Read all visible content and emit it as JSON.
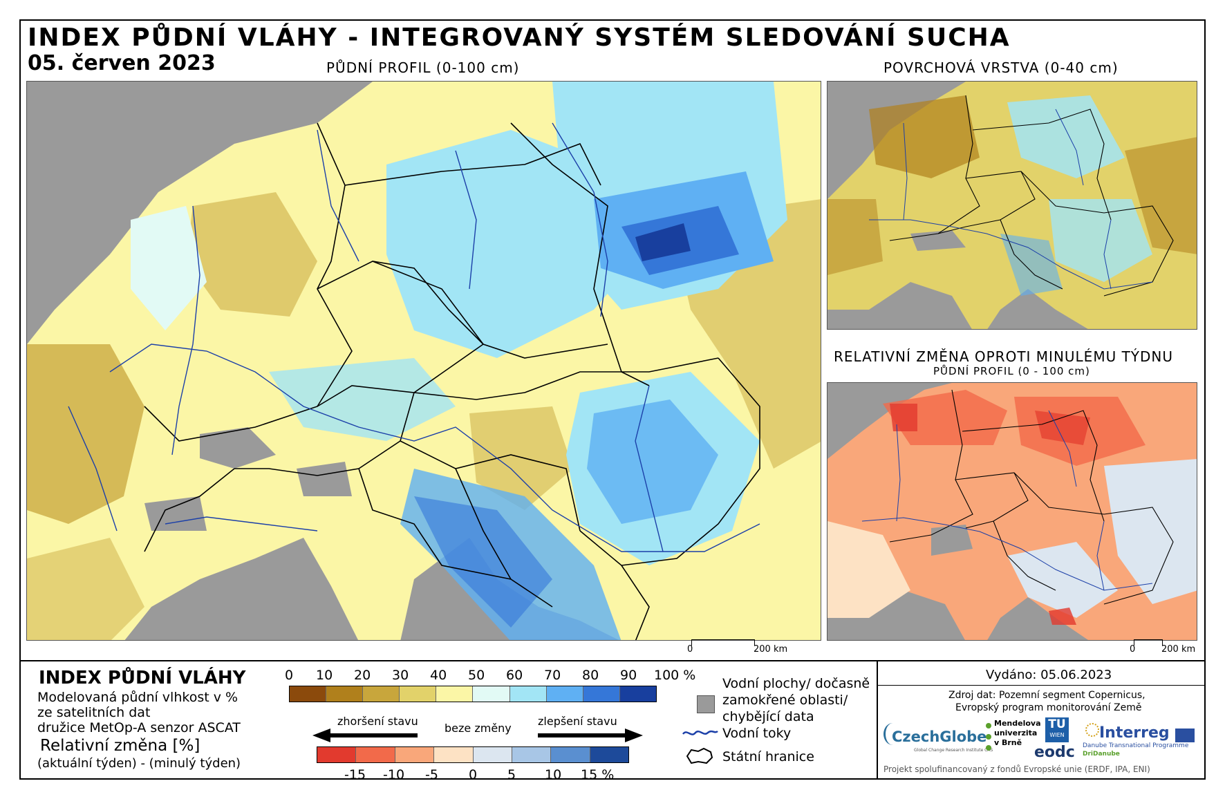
{
  "header": {
    "title": "INDEX PŮDNÍ VLÁHY - INTEGROVANÝ SYSTÉM SLEDOVÁNÍ SUCHA",
    "date": "05. červen 2023"
  },
  "maps": {
    "main_caption": "PŮDNÍ PROFIL (0-100 cm)",
    "surface_caption": "POVRCHOVÁ VRSTVA (0-40 cm)",
    "change_caption": "RELATIVNÍ ZMĚNA OPROTI MINULÉMU TÝDNU",
    "change_subcaption": "PŮDNÍ PROFIL (0 - 100 cm)",
    "scale_zero": "0",
    "scale_label": "200 km"
  },
  "legend": {
    "title": "INDEX PŮDNÍ VLÁHY",
    "desc_lines": [
      "Modelovaná půdní vlhkost v %",
      "ze satelitních dat",
      "družice MetOp-A senzor ASCAT"
    ],
    "change_title": "Relativní změna [%]",
    "change_desc": "(aktuální týden) - (minulý týden)",
    "index_ticks": [
      "0",
      "10",
      "20",
      "30",
      "40",
      "50",
      "60",
      "70",
      "80",
      "90",
      "100 %"
    ],
    "index_colors": [
      "#8b4a0c",
      "#b0801c",
      "#c8a63c",
      "#e2d26a",
      "#fbf6a6",
      "#e2faf5",
      "#a2e5f5",
      "#5fb0f3",
      "#3577d8",
      "#183f9e"
    ],
    "worse_label": "zhoršení stavu",
    "nochange_label": "beze změny",
    "better_label": "zlepšení stavu",
    "change_ticks": [
      "-15",
      "-10",
      "-5",
      "0",
      "5",
      "10",
      "15 %"
    ],
    "change_colors": [
      "#e23a2e",
      "#f26a4a",
      "#f9a77a",
      "#fde2c4",
      "#dce6f0",
      "#a8c6e6",
      "#5a8fd0",
      "#1d4a9a"
    ],
    "water_label_lines": [
      "Vodní plochy/ dočasně",
      "zamokřené oblasti/",
      "chybějící data"
    ],
    "rivers_label": "Vodní toky",
    "borders_label": "Státní hranice"
  },
  "info": {
    "issued": "Vydáno: 05.06.2023",
    "source_lines": [
      "Zdroj dat: Pozemní segment Copernicus,",
      "Evropský program monitorování Země"
    ],
    "logos": {
      "czechglobe": "CzechGlobe",
      "czechglobe_sub": "Global Change Research Institute CAS",
      "mendel_lines": [
        "Mendelova",
        "univerzita",
        "v Brně"
      ],
      "tu": "TU",
      "tu_sub": "WIEN",
      "eodc": "eodc",
      "interreg": "Interreg",
      "interreg_sub": "Danube Transnational Programme",
      "dridanube": "DriDanube"
    },
    "footer": "Projekt spolufinancovaný z fondů Evropské unie (ERDF, IPA, ENI)"
  },
  "colors": {
    "water_gray": "#9a9a9a",
    "river_blue": "#1b3fa8"
  }
}
